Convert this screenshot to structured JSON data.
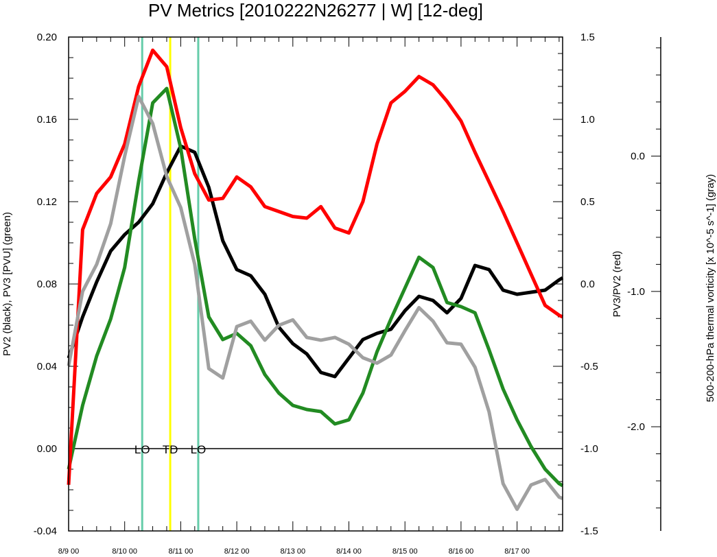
{
  "chart_data": {
    "type": "line",
    "title": "PV Metrics [2010222N26277 | W] [12-deg]",
    "x_axis": {
      "range": [
        0,
        35.25
      ],
      "tick_labels": [
        "8/9 00",
        "8/10 00",
        "8/11 00",
        "8/12 00",
        "8/13 00",
        "8/14 00",
        "8/15 00",
        "8/16 00",
        "8/17 00"
      ],
      "tick_values": [
        0,
        4,
        8,
        12,
        16,
        20,
        24,
        28,
        32
      ]
    },
    "y_axis_left": {
      "label": "PV2 (black), PV3 [PVU] (green)",
      "range": [
        -0.04,
        0.2
      ],
      "ticks": [
        -0.04,
        0.0,
        0.04,
        0.08,
        0.12,
        0.16,
        0.2
      ],
      "tick_labels": [
        "-0.04",
        "0.00",
        "0.04",
        "0.08",
        "0.12",
        "0.16",
        "0.20"
      ]
    },
    "y_axis_right": {
      "label": "PV3/PV2 (red)",
      "range": [
        -1.5,
        1.5
      ],
      "ticks": [
        -1.5,
        -1.0,
        -0.5,
        0.0,
        0.5,
        1.0,
        1.5
      ],
      "tick_labels": [
        "-1.5",
        "-1.0",
        "-0.5",
        "0.0",
        "0.5",
        "1.0",
        "1.5"
      ]
    },
    "y_axis_far_right": {
      "label": "500-200-hPa thermal vorticity [x 10^-5 s^-1] (gray)",
      "range": [
        -2.77,
        0.88
      ],
      "ticks": [
        0.0,
        -1.0,
        -2.0
      ],
      "tick_labels": [
        "0.0",
        "-1.0",
        "-2.0"
      ]
    },
    "x": [
      0,
      1,
      2,
      3,
      4,
      5,
      6,
      7,
      8,
      9,
      10,
      11,
      12,
      13,
      14,
      15,
      16,
      17,
      18,
      19,
      20,
      21,
      22,
      23,
      24,
      25,
      26,
      27,
      28,
      29,
      30,
      31,
      32,
      33,
      34,
      35,
      35.25
    ],
    "series": [
      {
        "name": "PV2",
        "axis": "left",
        "color": "#000000",
        "values": [
          0.044,
          0.064,
          0.081,
          0.096,
          0.104,
          0.11,
          0.119,
          0.134,
          0.147,
          0.144,
          0.127,
          0.101,
          0.087,
          0.084,
          0.075,
          0.059,
          0.051,
          0.046,
          0.037,
          0.035,
          0.044,
          0.053,
          0.056,
          0.058,
          0.067,
          0.074,
          0.072,
          0.066,
          0.073,
          0.089,
          0.087,
          0.077,
          0.075,
          0.076,
          0.077,
          0.082,
          0.083
        ]
      },
      {
        "name": "PV3",
        "axis": "left",
        "color": "#228b22",
        "values": [
          -0.01,
          0.021,
          0.045,
          0.063,
          0.088,
          0.13,
          0.168,
          0.175,
          0.146,
          0.102,
          0.064,
          0.053,
          0.056,
          0.05,
          0.036,
          0.027,
          0.021,
          0.019,
          0.018,
          0.012,
          0.014,
          0.027,
          0.047,
          0.063,
          0.078,
          0.093,
          0.088,
          0.071,
          0.069,
          0.066,
          0.048,
          0.029,
          0.014,
          0.001,
          -0.01,
          -0.017,
          -0.018
        ]
      },
      {
        "name": "PV3/PV2",
        "axis": "right",
        "color": "#ff0000",
        "values": [
          -1.22,
          0.33,
          0.55,
          0.65,
          0.85,
          1.2,
          1.42,
          1.32,
          0.95,
          0.67,
          0.51,
          0.52,
          0.65,
          0.59,
          0.47,
          0.44,
          0.41,
          0.4,
          0.47,
          0.34,
          0.31,
          0.5,
          0.85,
          1.1,
          1.17,
          1.26,
          1.21,
          1.11,
          0.99,
          0.8,
          0.62,
          0.44,
          0.25,
          0.06,
          -0.13,
          -0.19,
          -0.2
        ]
      },
      {
        "name": "thermal vorticity",
        "axis": "far_right",
        "color": "#a0a0a0",
        "values": [
          -1.55,
          -1.0,
          -0.8,
          -0.5,
          0.0,
          0.44,
          0.24,
          -0.15,
          -0.38,
          -0.8,
          -1.57,
          -1.64,
          -1.26,
          -1.22,
          -1.36,
          -1.25,
          -1.21,
          -1.34,
          -1.36,
          -1.34,
          -1.39,
          -1.49,
          -1.53,
          -1.47,
          -1.29,
          -1.12,
          -1.22,
          -1.38,
          -1.39,
          -1.56,
          -1.89,
          -2.42,
          -2.61,
          -2.43,
          -2.39,
          -2.52,
          -2.53
        ]
      }
    ],
    "vertical_markers": [
      {
        "x": 5.25,
        "label": "LO",
        "color": "#66ccaa"
      },
      {
        "x": 7.25,
        "label": "TD",
        "color": "#ffff00"
      },
      {
        "x": 9.25,
        "label": "LO",
        "color": "#66ccaa"
      }
    ],
    "zero_line": 0.0
  }
}
